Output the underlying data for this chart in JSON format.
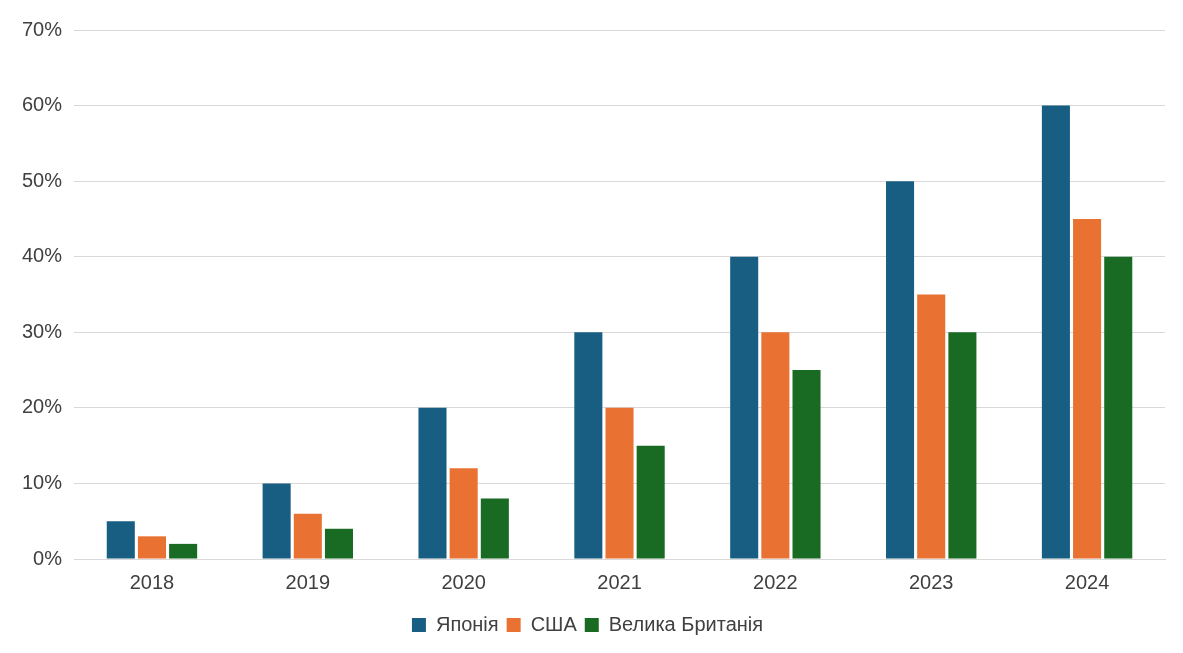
{
  "chart_data": {
    "type": "bar",
    "categories": [
      "2018",
      "2019",
      "2020",
      "2021",
      "2022",
      "2023",
      "2024"
    ],
    "series": [
      {
        "name": "Японія",
        "color": "#175e82",
        "values": [
          5,
          10,
          20,
          30,
          40,
          50,
          60
        ]
      },
      {
        "name": "США",
        "color": "#e97132",
        "values": [
          3,
          6,
          12,
          20,
          30,
          35,
          45
        ]
      },
      {
        "name": "Велика Британія",
        "color": "#196b24",
        "values": [
          2,
          4,
          8,
          15,
          25,
          30,
          40
        ]
      }
    ],
    "ylim": [
      0,
      70
    ],
    "yticks": [
      {
        "value": 0,
        "label": "0%"
      },
      {
        "value": 10,
        "label": "10%"
      },
      {
        "value": 20,
        "label": "20%"
      },
      {
        "value": 30,
        "label": "30%"
      },
      {
        "value": 40,
        "label": "40%"
      },
      {
        "value": 50,
        "label": "50%"
      },
      {
        "value": 60,
        "label": "60%"
      },
      {
        "value": 70,
        "label": "70%"
      }
    ],
    "grid": "y",
    "legend": "bottom"
  }
}
